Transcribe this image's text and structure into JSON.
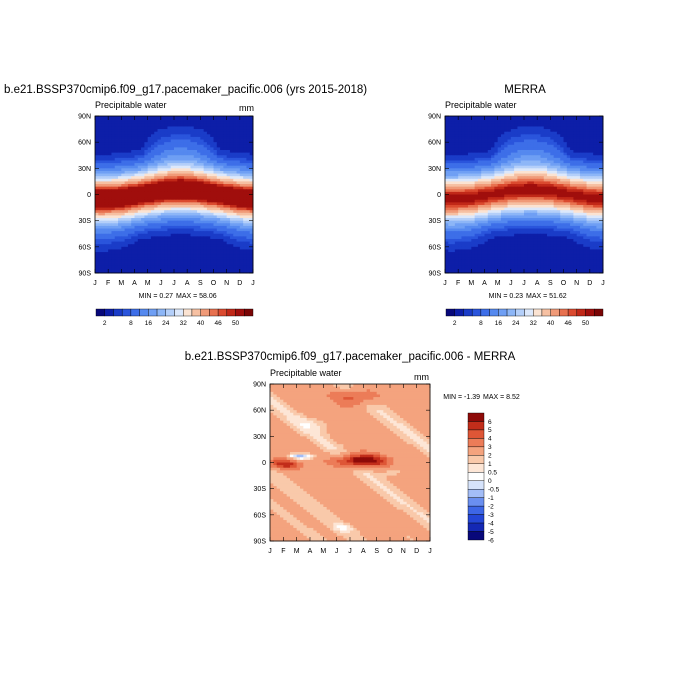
{
  "chart_data": [
    {
      "type": "heatmap",
      "title": "b.e21.BSSP370cmip6.f09_g17.pacemaker_pacific.006 (yrs 2015-2018)",
      "subtitle_left": "Precipitable water",
      "subtitle_right": "mm",
      "x_categories": [
        "J",
        "F",
        "M",
        "A",
        "M",
        "J",
        "J",
        "A",
        "S",
        "O",
        "N",
        "D",
        "J"
      ],
      "y_ticks": [
        "90N",
        "60N",
        "30N",
        "0",
        "30S",
        "60S",
        "90S"
      ],
      "y_values": [
        90,
        60,
        30,
        0,
        -30,
        -60,
        -90
      ],
      "ylim": [
        -90,
        90
      ],
      "min_label": "MIN =  0.27",
      "max_label": "MAX =  58.06",
      "min": 0.27,
      "max": 58.06,
      "colorbar_labels": [
        "2",
        "8",
        "16",
        "24",
        "32",
        "40",
        "46",
        "50"
      ],
      "colorbar_levels": [
        2,
        4,
        6,
        8,
        12,
        16,
        20,
        24,
        28,
        32,
        36,
        40,
        44,
        46,
        48,
        50
      ],
      "peak": 57
    },
    {
      "type": "heatmap",
      "title": "MERRA",
      "subtitle_left": "Precipitable water",
      "subtitle_right": "",
      "x_categories": [
        "J",
        "F",
        "M",
        "A",
        "M",
        "J",
        "J",
        "A",
        "S",
        "O",
        "N",
        "D",
        "J"
      ],
      "y_ticks": [
        "90N",
        "60N",
        "30N",
        "0",
        "30S",
        "60S",
        "90S"
      ],
      "y_values": [
        90,
        60,
        30,
        0,
        -30,
        -60,
        -90
      ],
      "ylim": [
        -90,
        90
      ],
      "min_label": "MIN =  0.23",
      "max_label": "MAX =  51.62",
      "min": 0.23,
      "max": 51.62,
      "colorbar_labels": [
        "2",
        "8",
        "16",
        "24",
        "32",
        "40",
        "46",
        "50"
      ],
      "colorbar_levels": [
        2,
        4,
        6,
        8,
        12,
        16,
        20,
        24,
        28,
        32,
        36,
        40,
        44,
        46,
        48,
        50
      ],
      "peak": 51
    },
    {
      "type": "heatmap",
      "title": "b.e21.BSSP370cmip6.f09_g17.pacemaker_pacific.006 - MERRA",
      "subtitle_left": "Precipitable water",
      "subtitle_right": "mm",
      "x_categories": [
        "J",
        "F",
        "M",
        "A",
        "M",
        "J",
        "J",
        "A",
        "S",
        "O",
        "N",
        "D",
        "J"
      ],
      "y_ticks": [
        "90N",
        "60N",
        "30N",
        "0",
        "30S",
        "60S",
        "90S"
      ],
      "y_values": [
        90,
        60,
        30,
        0,
        -30,
        -60,
        -90
      ],
      "ylim": [
        -90,
        90
      ],
      "min_label": "MIN =  -1.39",
      "max_label": "MAX =   8.52",
      "min": -1.39,
      "max": 8.52,
      "colorbar_labels": [
        "6",
        "5",
        "4",
        "3",
        "2",
        "1",
        "0.5",
        "0",
        "-0.5",
        "-1",
        "-2",
        "-3",
        "-4",
        "-5",
        "-6"
      ],
      "colorbar_levels": [
        -6,
        -5,
        -4,
        -3,
        -2,
        -1,
        -0.5,
        0,
        0.5,
        1,
        2,
        3,
        4,
        5,
        6
      ]
    }
  ],
  "colors": {
    "blue_red": [
      "#08087a",
      "#0d1ea8",
      "#1a3cc8",
      "#2a55dc",
      "#3d6ee8",
      "#5589ef",
      "#6f9ff4",
      "#8db6f7",
      "#b4cff9",
      "#dce8fb",
      "#fbe3d2",
      "#f6c0a2",
      "#f09a78",
      "#e8714f",
      "#db4a2f",
      "#c12818",
      "#a00e0c",
      "#7a0505"
    ],
    "diff": [
      "#08087a",
      "#1428b4",
      "#2446d6",
      "#3d66e6",
      "#6a8ff0",
      "#a3bdf7",
      "#d6e3fb",
      "#ffffff",
      "#fde6d6",
      "#f9c9aa",
      "#f4a37e",
      "#ec7c58",
      "#de5636",
      "#c22d1a",
      "#8e0a08"
    ]
  }
}
